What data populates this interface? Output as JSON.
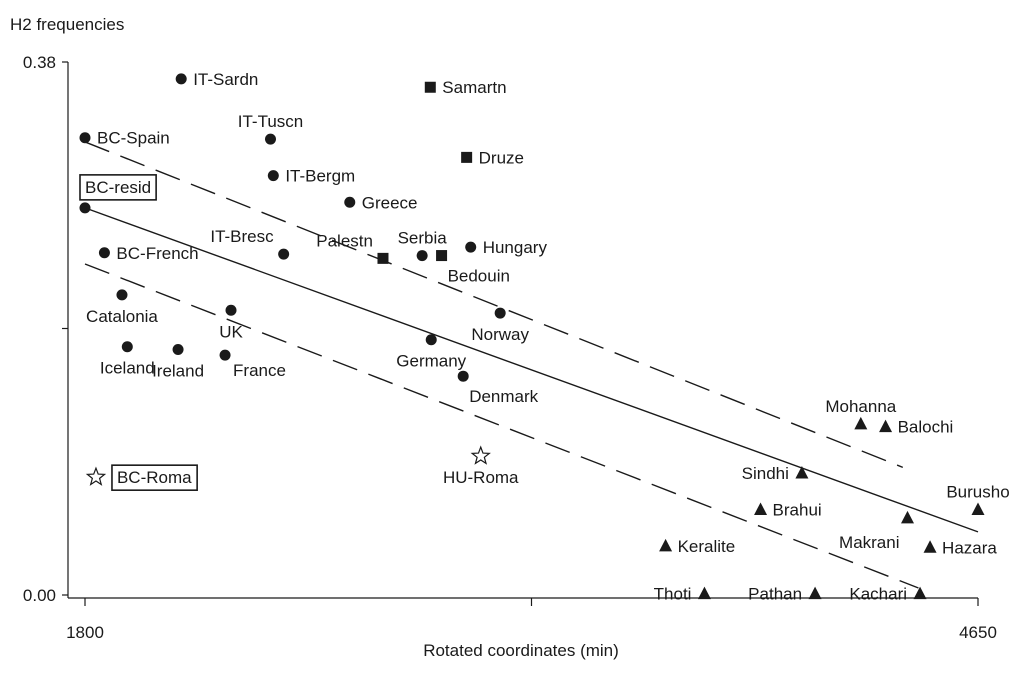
{
  "chart_data": {
    "type": "scatter",
    "title": "",
    "ylabel": "H2 frequencies",
    "xlabel": "Rotated coordinates (min)",
    "xlim": [
      1800,
      4650
    ],
    "ylim": [
      0.0,
      0.38
    ],
    "x_tick_labels": [
      {
        "value": 1800,
        "label": "1800"
      },
      {
        "value": 4650,
        "label": "4650"
      }
    ],
    "x_minor_ticks": [
      3225
    ],
    "y_tick_labels": [
      {
        "value": 0.0,
        "label": "0.00"
      },
      {
        "value": 0.38,
        "label": "0.38"
      }
    ],
    "y_minor_ticks": [
      0.19
    ],
    "grid": false,
    "legend": "none",
    "regression": {
      "center": {
        "x1": 1800,
        "y1": 0.276,
        "x2": 4650,
        "y2": 0.045
      },
      "upper": {
        "x1": 1800,
        "y1": 0.323,
        "x2": 4410,
        "y2": 0.091
      },
      "lower": {
        "x1": 1800,
        "y1": 0.236,
        "x2": 4460,
        "y2": 0.005
      }
    },
    "points": [
      {
        "name": "BC-Spain",
        "x": 1800,
        "y": 0.326,
        "marker": "circle",
        "label_pos": "right"
      },
      {
        "name": "BC-resid",
        "x": 1800,
        "y": 0.276,
        "marker": "circle",
        "label_pos": "boxed-above"
      },
      {
        "name": "BC-French",
        "x": 1862,
        "y": 0.244,
        "marker": "circle",
        "label_pos": "right"
      },
      {
        "name": "Catalonia",
        "x": 1918,
        "y": 0.214,
        "marker": "circle",
        "label_pos": "below"
      },
      {
        "name": "Iceland",
        "x": 1935,
        "y": 0.177,
        "marker": "circle",
        "label_pos": "below"
      },
      {
        "name": "Ireland",
        "x": 2097,
        "y": 0.175,
        "marker": "circle",
        "label_pos": "below"
      },
      {
        "name": "IT-Sardn",
        "x": 2107,
        "y": 0.368,
        "marker": "circle",
        "label_pos": "right"
      },
      {
        "name": "UK",
        "x": 2266,
        "y": 0.203,
        "marker": "circle",
        "label_pos": "below"
      },
      {
        "name": "France",
        "x": 2247,
        "y": 0.171,
        "marker": "circle",
        "label_pos": "right-below"
      },
      {
        "name": "IT-Tuscn",
        "x": 2392,
        "y": 0.325,
        "marker": "circle",
        "label_pos": "above"
      },
      {
        "name": "IT-Bergm",
        "x": 2401,
        "y": 0.299,
        "marker": "circle",
        "label_pos": "right"
      },
      {
        "name": "IT-Bresc",
        "x": 2434,
        "y": 0.243,
        "marker": "circle",
        "label_pos": "above-left"
      },
      {
        "name": "Greece",
        "x": 2645,
        "y": 0.28,
        "marker": "circle",
        "label_pos": "right"
      },
      {
        "name": "Palestn",
        "x": 2751,
        "y": 0.24,
        "marker": "square",
        "label_pos": "above-left"
      },
      {
        "name": "Samartn",
        "x": 2902,
        "y": 0.362,
        "marker": "square",
        "label_pos": "right"
      },
      {
        "name": "Serbia",
        "x": 2876,
        "y": 0.242,
        "marker": "circle",
        "label_pos": "above"
      },
      {
        "name": "Bedouin",
        "x": 2938,
        "y": 0.242,
        "marker": "square",
        "label_pos": "below-right"
      },
      {
        "name": "Germany",
        "x": 2905,
        "y": 0.182,
        "marker": "circle",
        "label_pos": "below"
      },
      {
        "name": "Druze",
        "x": 3018,
        "y": 0.312,
        "marker": "square",
        "label_pos": "right"
      },
      {
        "name": "Hungary",
        "x": 3031,
        "y": 0.248,
        "marker": "circle",
        "label_pos": "right"
      },
      {
        "name": "Denmark",
        "x": 3007,
        "y": 0.156,
        "marker": "circle",
        "label_pos": "below-right"
      },
      {
        "name": "Norway",
        "x": 3125,
        "y": 0.201,
        "marker": "circle",
        "label_pos": "below"
      },
      {
        "name": "BC-Roma",
        "x": 1835,
        "y": 0.084,
        "marker": "star",
        "label_pos": "boxed-right"
      },
      {
        "name": "HU-Roma",
        "x": 3063,
        "y": 0.099,
        "marker": "star",
        "label_pos": "below"
      },
      {
        "name": "Keralite",
        "x": 3653,
        "y": 0.035,
        "marker": "triangle",
        "label_pos": "right"
      },
      {
        "name": "Thoti",
        "x": 3777,
        "y": 0.001,
        "marker": "triangle",
        "label_pos": "left"
      },
      {
        "name": "Brahui",
        "x": 3956,
        "y": 0.061,
        "marker": "triangle",
        "label_pos": "right"
      },
      {
        "name": "Sindhi",
        "x": 4088,
        "y": 0.087,
        "marker": "triangle",
        "label_pos": "left"
      },
      {
        "name": "Pathan",
        "x": 4130,
        "y": 0.001,
        "marker": "triangle",
        "label_pos": "left"
      },
      {
        "name": "Mohanna",
        "x": 4276,
        "y": 0.122,
        "marker": "triangle",
        "label_pos": "above"
      },
      {
        "name": "Balochi",
        "x": 4355,
        "y": 0.12,
        "marker": "triangle",
        "label_pos": "right"
      },
      {
        "name": "Makrani",
        "x": 4425,
        "y": 0.055,
        "marker": "triangle",
        "label_pos": "below-left"
      },
      {
        "name": "Kachari",
        "x": 4465,
        "y": 0.001,
        "marker": "triangle",
        "label_pos": "left"
      },
      {
        "name": "Hazara",
        "x": 4497,
        "y": 0.034,
        "marker": "triangle",
        "label_pos": "right"
      },
      {
        "name": "Burusho",
        "x": 4650,
        "y": 0.061,
        "marker": "triangle",
        "label_pos": "above"
      }
    ]
  }
}
